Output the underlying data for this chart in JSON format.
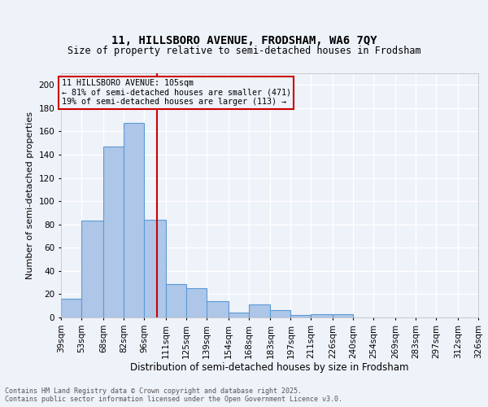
{
  "title_line1": "11, HILLSBORO AVENUE, FRODSHAM, WA6 7QY",
  "title_line2": "Size of property relative to semi-detached houses in Frodsham",
  "xlabel": "Distribution of semi-detached houses by size in Frodsham",
  "ylabel": "Number of semi-detached properties",
  "bins": [
    39,
    53,
    68,
    82,
    96,
    111,
    125,
    139,
    154,
    168,
    183,
    197,
    211,
    226,
    240,
    254,
    269,
    283,
    297,
    312,
    326
  ],
  "counts": [
    16,
    83,
    147,
    167,
    84,
    29,
    25,
    14,
    4,
    11,
    6,
    2,
    3,
    3,
    0,
    0,
    0,
    0,
    0,
    0
  ],
  "bar_color": "#aec6e8",
  "bar_edge_color": "#5b9bd5",
  "vline_x": 105,
  "vline_color": "#cc0000",
  "annotation_line1": "11 HILLSBORO AVENUE: 105sqm",
  "annotation_line2": "← 81% of semi-detached houses are smaller (471)",
  "annotation_line3": "19% of semi-detached houses are larger (113) →",
  "annotation_box_color": "#cc0000",
  "ylim": [
    0,
    210
  ],
  "yticks": [
    0,
    20,
    40,
    60,
    80,
    100,
    120,
    140,
    160,
    180,
    200
  ],
  "background_color": "#eef2f9",
  "grid_color": "#ffffff",
  "footer_line1": "Contains HM Land Registry data © Crown copyright and database right 2025.",
  "footer_line2": "Contains public sector information licensed under the Open Government Licence v3.0.",
  "tick_labels": [
    "39sqm",
    "53sqm",
    "68sqm",
    "82sqm",
    "96sqm",
    "111sqm",
    "125sqm",
    "139sqm",
    "154sqm",
    "168sqm",
    "183sqm",
    "197sqm",
    "211sqm",
    "226sqm",
    "240sqm",
    "254sqm",
    "269sqm",
    "283sqm",
    "297sqm",
    "312sqm",
    "326sqm"
  ]
}
